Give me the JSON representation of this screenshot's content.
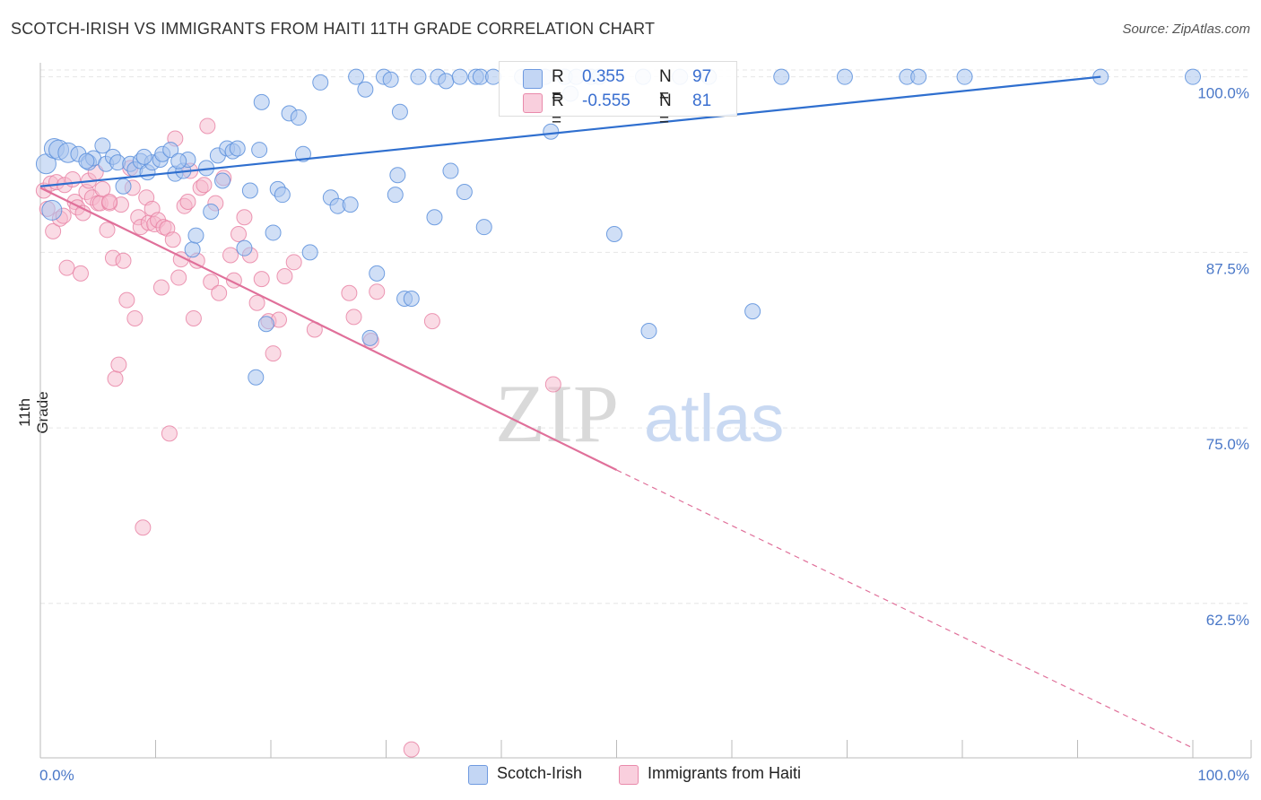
{
  "header": {
    "title": "SCOTCH-IRISH VS IMMIGRANTS FROM HAITI 11TH GRADE CORRELATION CHART",
    "source": "Source: ZipAtlas.com"
  },
  "legend_top": {
    "rows": [
      {
        "r_label": "R =",
        "r_value": "0.355",
        "n_label": "N =",
        "n_value": "97"
      },
      {
        "r_label": "R =",
        "r_value": "-0.555",
        "n_label": "N =",
        "n_value": "81"
      }
    ]
  },
  "legend_bottom": {
    "items": [
      "Scotch-Irish",
      "Immigrants from Haiti"
    ]
  },
  "watermark": {
    "zip": "ZIP",
    "atlas": "atlas"
  },
  "colors": {
    "blue_fill": "#a9c4ef",
    "blue_stroke": "#5b8fdc",
    "blue_line": "#2f6fcf",
    "pink_fill": "#f6b8cc",
    "pink_stroke": "#e77ea1",
    "pink_line": "#e0709a",
    "grid": "#e6e6e6",
    "tick_text": "#4a78c8"
  },
  "chart_data": {
    "type": "scatter",
    "title": "SCOTCH-IRISH VS IMMIGRANTS FROM HAITI 11TH GRADE CORRELATION CHART",
    "xlabel": "",
    "ylabel": "11th Grade",
    "xlim": [
      0,
      100
    ],
    "ylim": [
      51.5,
      101
    ],
    "x_tick_labels": [
      "0.0%",
      "100.0%"
    ],
    "y_ticks": [
      62.5,
      75.0,
      87.5,
      100.0
    ],
    "y_tick_labels": [
      "62.5%",
      "75.0%",
      "87.5%",
      "100.0%"
    ],
    "grid": true,
    "legend_position": "top-center",
    "series": [
      {
        "name": "Scotch-Irish",
        "r": 0.355,
        "n": 97,
        "trend": {
          "x0": 0,
          "y0": 92.2,
          "x1": 92,
          "y1": 100.0,
          "dashed_to": null
        },
        "points": [
          [
            0.5,
            93.8
          ],
          [
            1.2,
            94.9
          ],
          [
            1.6,
            94.8
          ],
          [
            2.4,
            94.6
          ],
          [
            3.3,
            94.5
          ],
          [
            4.2,
            93.9
          ],
          [
            4.6,
            94.2
          ],
          [
            5.4,
            95.1
          ],
          [
            5.7,
            93.8
          ],
          [
            6.3,
            94.3
          ],
          [
            6.7,
            93.9
          ],
          [
            7.2,
            92.2
          ],
          [
            7.8,
            93.8
          ],
          [
            8.2,
            93.4
          ],
          [
            8.7,
            94.0
          ],
          [
            9.3,
            93.2
          ],
          [
            9.7,
            93.9
          ],
          [
            10.4,
            94.1
          ],
          [
            10.6,
            94.5
          ],
          [
            11.3,
            94.8
          ],
          [
            11.7,
            93.1
          ],
          [
            12.4,
            93.3
          ],
          [
            12.8,
            94.1
          ],
          [
            13.2,
            87.7
          ],
          [
            13.5,
            88.7
          ],
          [
            14.4,
            93.5
          ],
          [
            14.8,
            90.4
          ],
          [
            15.4,
            94.4
          ],
          [
            15.8,
            92.6
          ],
          [
            16.2,
            94.9
          ],
          [
            16.7,
            94.7
          ],
          [
            17.1,
            94.9
          ],
          [
            17.7,
            87.8
          ],
          [
            18.2,
            91.9
          ],
          [
            18.7,
            78.6
          ],
          [
            19.2,
            98.2
          ],
          [
            19.6,
            82.4
          ],
          [
            20.2,
            88.9
          ],
          [
            20.6,
            92.0
          ],
          [
            21.0,
            91.6
          ],
          [
            21.6,
            97.4
          ],
          [
            22.4,
            97.1
          ],
          [
            22.8,
            94.5
          ],
          [
            23.4,
            87.5
          ],
          [
            24.3,
            99.6
          ],
          [
            25.2,
            91.4
          ],
          [
            25.8,
            90.8
          ],
          [
            26.9,
            90.9
          ],
          [
            27.4,
            100.0
          ],
          [
            28.2,
            99.1
          ],
          [
            28.6,
            81.4
          ],
          [
            29.2,
            86.0
          ],
          [
            29.8,
            100.0
          ],
          [
            30.4,
            99.8
          ],
          [
            30.8,
            91.6
          ],
          [
            31.2,
            97.5
          ],
          [
            31.6,
            84.2
          ],
          [
            32.2,
            84.2
          ],
          [
            32.8,
            100.0
          ],
          [
            34.2,
            90.0
          ],
          [
            34.5,
            100.0
          ],
          [
            35.2,
            99.7
          ],
          [
            35.6,
            93.3
          ],
          [
            36.4,
            100.0
          ],
          [
            36.8,
            91.8
          ],
          [
            37.8,
            100.0
          ],
          [
            38.2,
            100.0
          ],
          [
            38.5,
            89.3
          ],
          [
            39.3,
            100.0
          ],
          [
            41.8,
            100.0
          ],
          [
            42.5,
            100.0
          ],
          [
            43.8,
            100.0
          ],
          [
            44.3,
            96.1
          ],
          [
            45.5,
            100.0
          ],
          [
            46.5,
            100.0
          ],
          [
            47.8,
            100.0
          ],
          [
            48.5,
            100.0
          ],
          [
            49.8,
            88.8
          ],
          [
            52.3,
            100.0
          ],
          [
            52.8,
            81.9
          ],
          [
            55.5,
            100.0
          ],
          [
            58.0,
            100.0
          ],
          [
            61.8,
            83.3
          ],
          [
            64.3,
            100.0
          ],
          [
            69.8,
            100.0
          ],
          [
            75.2,
            100.0
          ],
          [
            76.2,
            100.0
          ],
          [
            80.2,
            100.0
          ],
          [
            92.0,
            100.0
          ],
          [
            100.0,
            100.0
          ],
          [
            1.0,
            90.5
          ],
          [
            4.0,
            94.0
          ],
          [
            12.0,
            94.0
          ],
          [
            9.0,
            94.3
          ],
          [
            19.0,
            94.8
          ],
          [
            31.0,
            93.0
          ],
          [
            46.0,
            98.8
          ]
        ]
      },
      {
        "name": "Immigrants from Haiti",
        "r": -0.555,
        "n": 81,
        "trend": {
          "x0": 0,
          "y0": 92.1,
          "x1": 50,
          "y1": 72.0,
          "dashed_to": {
            "x": 100,
            "y": 52.2
          }
        },
        "points": [
          [
            0.3,
            91.9
          ],
          [
            0.6,
            90.6
          ],
          [
            0.9,
            92.4
          ],
          [
            1.1,
            89.0
          ],
          [
            1.4,
            92.5
          ],
          [
            1.7,
            89.9
          ],
          [
            2.1,
            92.3
          ],
          [
            2.3,
            86.4
          ],
          [
            2.8,
            92.7
          ],
          [
            3.0,
            91.1
          ],
          [
            3.2,
            90.7
          ],
          [
            3.5,
            86.0
          ],
          [
            3.7,
            90.3
          ],
          [
            4.0,
            91.8
          ],
          [
            4.2,
            92.6
          ],
          [
            4.5,
            91.4
          ],
          [
            4.8,
            93.2
          ],
          [
            5.0,
            91.0
          ],
          [
            5.2,
            91.0
          ],
          [
            5.4,
            92.0
          ],
          [
            5.8,
            89.1
          ],
          [
            6.0,
            91.0
          ],
          [
            6.3,
            87.1
          ],
          [
            6.5,
            78.5
          ],
          [
            6.8,
            79.5
          ],
          [
            7.0,
            90.9
          ],
          [
            7.2,
            86.9
          ],
          [
            7.5,
            84.1
          ],
          [
            7.8,
            93.5
          ],
          [
            8.0,
            92.1
          ],
          [
            8.2,
            82.8
          ],
          [
            8.5,
            90.0
          ],
          [
            8.7,
            89.3
          ],
          [
            8.9,
            67.9
          ],
          [
            9.2,
            91.4
          ],
          [
            9.4,
            89.6
          ],
          [
            9.7,
            90.6
          ],
          [
            9.9,
            89.5
          ],
          [
            10.2,
            89.8
          ],
          [
            10.5,
            85.0
          ],
          [
            10.7,
            89.3
          ],
          [
            11.0,
            89.2
          ],
          [
            11.2,
            74.6
          ],
          [
            11.5,
            88.4
          ],
          [
            11.7,
            95.6
          ],
          [
            12.0,
            85.7
          ],
          [
            12.2,
            87.0
          ],
          [
            12.5,
            90.8
          ],
          [
            12.8,
            91.1
          ],
          [
            13.0,
            93.3
          ],
          [
            13.3,
            82.8
          ],
          [
            13.6,
            86.9
          ],
          [
            13.9,
            92.1
          ],
          [
            14.2,
            92.3
          ],
          [
            14.5,
            96.5
          ],
          [
            14.8,
            85.4
          ],
          [
            15.2,
            91.0
          ],
          [
            15.5,
            84.6
          ],
          [
            15.9,
            92.8
          ],
          [
            16.5,
            87.3
          ],
          [
            16.8,
            85.5
          ],
          [
            17.2,
            88.8
          ],
          [
            17.7,
            90.0
          ],
          [
            18.2,
            87.3
          ],
          [
            18.8,
            83.9
          ],
          [
            19.2,
            85.6
          ],
          [
            19.8,
            82.6
          ],
          [
            20.2,
            80.3
          ],
          [
            20.7,
            82.7
          ],
          [
            21.2,
            85.8
          ],
          [
            22.0,
            86.8
          ],
          [
            23.8,
            82.0
          ],
          [
            26.8,
            84.6
          ],
          [
            27.2,
            82.9
          ],
          [
            28.7,
            81.2
          ],
          [
            29.2,
            84.7
          ],
          [
            32.2,
            52.1
          ],
          [
            34.0,
            82.6
          ],
          [
            44.5,
            78.1
          ],
          [
            2.0,
            90.1
          ],
          [
            6.0,
            91.1
          ]
        ]
      }
    ]
  }
}
